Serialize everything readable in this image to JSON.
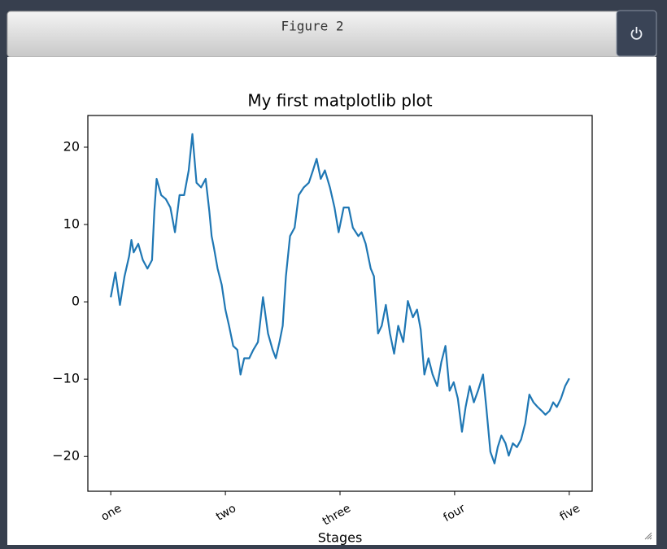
{
  "window": {
    "title": "Figure 2"
  },
  "chart_data": {
    "type": "line",
    "title": "My first matplotlib plot",
    "x_label": "Stages",
    "x": [
      0,
      10,
      20,
      30,
      40,
      45,
      50,
      60,
      70,
      80,
      90,
      95,
      100,
      110,
      120,
      130,
      140,
      150,
      160,
      170,
      178,
      187,
      197,
      207,
      215,
      220,
      225,
      233,
      242,
      250,
      258,
      267,
      276,
      283,
      291,
      302,
      311,
      321,
      332,
      343,
      353,
      360,
      368,
      375,
      382,
      391,
      401,
      410,
      421,
      432,
      441,
      449,
      458,
      467,
      478,
      488,
      497,
      508,
      519,
      528,
      540,
      547,
      556,
      567,
      574,
      583,
      591,
      600,
      609,
      618,
      627,
      638,
      648,
      659,
      668,
      676,
      684,
      693,
      702,
      712,
      721,
      730,
      739,
      748,
      757,
      766,
      774,
      783,
      792,
      801,
      812,
      819,
      828,
      837,
      844,
      852,
      861,
      868,
      877,
      886,
      895,
      904,
      913,
      922,
      931,
      940,
      948,
      957,
      965,
      973,
      982,
      991,
      1000
    ],
    "values": [
      0.6,
      3.8,
      -0.4,
      3.3,
      5.9,
      8,
      6.4,
      7.5,
      5.4,
      4.3,
      5.4,
      11.7,
      15.9,
      13.8,
      13.3,
      12.2,
      9,
      13.8,
      13.8,
      17,
      21.7,
      15.4,
      14.8,
      15.9,
      11.7,
      8.5,
      7,
      4.3,
      2.2,
      -1,
      -3.1,
      -5.7,
      -6.2,
      -9.4,
      -7.3,
      -7.3,
      -6.2,
      -5.2,
      0.6,
      -4.1,
      -6.2,
      -7.3,
      -5.2,
      -3.1,
      3.3,
      8.5,
      9.6,
      13.8,
      14.8,
      15.4,
      17,
      18.5,
      15.9,
      17,
      14.8,
      12.2,
      9,
      12.2,
      12.2,
      9.6,
      8.5,
      9,
      7.5,
      4.3,
      3.3,
      -4.1,
      -3.1,
      -0.4,
      -4.1,
      -6.7,
      -3.1,
      -5.2,
      0.1,
      -2,
      -1,
      -3.6,
      -9.4,
      -7.3,
      -9.4,
      -10.9,
      -7.8,
      -5.7,
      -11.5,
      -10.4,
      -12.5,
      -16.8,
      -13.6,
      -10.9,
      -13,
      -11.5,
      -9.4,
      -13.6,
      -19.4,
      -20.9,
      -18.8,
      -17.3,
      -18.3,
      -19.9,
      -18.3,
      -18.8,
      -17.8,
      -15.7,
      -12,
      -13,
      -13.6,
      -14.1,
      -14.6,
      -14.1,
      -13,
      -13.6,
      -12.5,
      -10.9,
      -9.9
    ],
    "color": "#1f77b4",
    "xlim": [
      -50,
      1050
    ],
    "xticks": [
      {
        "value": 0,
        "label": "one"
      },
      {
        "value": 250,
        "label": "two"
      },
      {
        "value": 500,
        "label": "three"
      },
      {
        "value": 750,
        "label": "four"
      },
      {
        "value": 1000,
        "label": "five"
      }
    ],
    "ylim": [
      -24.5,
      24.1
    ],
    "yticks": [
      {
        "value": -20,
        "label": "−20"
      },
      {
        "value": -10,
        "label": "−10"
      },
      0,
      10,
      20
    ],
    "grid": false
  }
}
